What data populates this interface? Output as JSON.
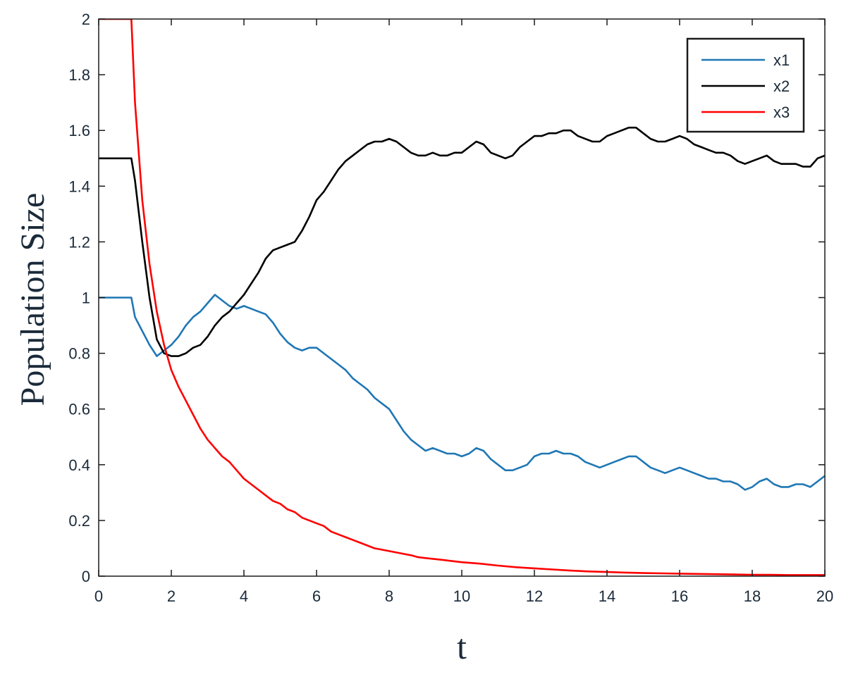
{
  "chart_data": {
    "type": "line",
    "xlabel": "t",
    "ylabel": "Population Size",
    "xlim": [
      0,
      20
    ],
    "ylim": [
      0,
      2
    ],
    "x_ticks": [
      0,
      2,
      4,
      6,
      8,
      10,
      12,
      14,
      16,
      18,
      20
    ],
    "x_tick_labels": [
      "0",
      "2",
      "4",
      "6",
      "8",
      "10",
      "12",
      "14",
      "16",
      "18",
      "20"
    ],
    "y_ticks": [
      0,
      0.2,
      0.4,
      0.6,
      0.8,
      1,
      1.2,
      1.4,
      1.6,
      1.8,
      2
    ],
    "y_tick_labels": [
      "0",
      "0.2",
      "0.4",
      "0.6",
      "0.8",
      "1",
      "1.2",
      "1.4",
      "1.6",
      "1.8",
      "2"
    ],
    "grid": false,
    "legend": "top-right",
    "series": [
      {
        "name": "x1",
        "color": "#1f77b4",
        "points": [
          [
            0,
            1.0
          ],
          [
            0.9,
            1.0
          ],
          [
            1.0,
            0.93
          ],
          [
            1.2,
            0.88
          ],
          [
            1.4,
            0.83
          ],
          [
            1.6,
            0.79
          ],
          [
            1.8,
            0.81
          ],
          [
            2.0,
            0.83
          ],
          [
            2.2,
            0.86
          ],
          [
            2.4,
            0.9
          ],
          [
            2.6,
            0.93
          ],
          [
            2.8,
            0.95
          ],
          [
            3.0,
            0.98
          ],
          [
            3.2,
            1.01
          ],
          [
            3.4,
            0.99
          ],
          [
            3.6,
            0.97
          ],
          [
            3.8,
            0.96
          ],
          [
            4.0,
            0.97
          ],
          [
            4.2,
            0.96
          ],
          [
            4.4,
            0.95
          ],
          [
            4.6,
            0.94
          ],
          [
            4.8,
            0.91
          ],
          [
            5.0,
            0.87
          ],
          [
            5.2,
            0.84
          ],
          [
            5.4,
            0.82
          ],
          [
            5.6,
            0.81
          ],
          [
            5.8,
            0.82
          ],
          [
            6.0,
            0.82
          ],
          [
            6.2,
            0.8
          ],
          [
            6.4,
            0.78
          ],
          [
            6.6,
            0.76
          ],
          [
            6.8,
            0.74
          ],
          [
            7.0,
            0.71
          ],
          [
            7.2,
            0.69
          ],
          [
            7.4,
            0.67
          ],
          [
            7.6,
            0.64
          ],
          [
            7.8,
            0.62
          ],
          [
            8.0,
            0.6
          ],
          [
            8.2,
            0.56
          ],
          [
            8.4,
            0.52
          ],
          [
            8.6,
            0.49
          ],
          [
            8.8,
            0.47
          ],
          [
            9.0,
            0.45
          ],
          [
            9.2,
            0.46
          ],
          [
            9.4,
            0.45
          ],
          [
            9.6,
            0.44
          ],
          [
            9.8,
            0.44
          ],
          [
            10.0,
            0.43
          ],
          [
            10.2,
            0.44
          ],
          [
            10.4,
            0.46
          ],
          [
            10.6,
            0.45
          ],
          [
            10.8,
            0.42
          ],
          [
            11.0,
            0.4
          ],
          [
            11.2,
            0.38
          ],
          [
            11.4,
            0.38
          ],
          [
            11.6,
            0.39
          ],
          [
            11.8,
            0.4
          ],
          [
            12.0,
            0.43
          ],
          [
            12.2,
            0.44
          ],
          [
            12.4,
            0.44
          ],
          [
            12.6,
            0.45
          ],
          [
            12.8,
            0.44
          ],
          [
            13.0,
            0.44
          ],
          [
            13.2,
            0.43
          ],
          [
            13.4,
            0.41
          ],
          [
            13.6,
            0.4
          ],
          [
            13.8,
            0.39
          ],
          [
            14.0,
            0.4
          ],
          [
            14.2,
            0.41
          ],
          [
            14.4,
            0.42
          ],
          [
            14.6,
            0.43
          ],
          [
            14.8,
            0.43
          ],
          [
            15.0,
            0.41
          ],
          [
            15.2,
            0.39
          ],
          [
            15.4,
            0.38
          ],
          [
            15.6,
            0.37
          ],
          [
            15.8,
            0.38
          ],
          [
            16.0,
            0.39
          ],
          [
            16.2,
            0.38
          ],
          [
            16.4,
            0.37
          ],
          [
            16.6,
            0.36
          ],
          [
            16.8,
            0.35
          ],
          [
            17.0,
            0.35
          ],
          [
            17.2,
            0.34
          ],
          [
            17.4,
            0.34
          ],
          [
            17.6,
            0.33
          ],
          [
            17.8,
            0.31
          ],
          [
            18.0,
            0.32
          ],
          [
            18.2,
            0.34
          ],
          [
            18.4,
            0.35
          ],
          [
            18.6,
            0.33
          ],
          [
            18.8,
            0.32
          ],
          [
            19.0,
            0.32
          ],
          [
            19.2,
            0.33
          ],
          [
            19.4,
            0.33
          ],
          [
            19.6,
            0.32
          ],
          [
            19.8,
            0.34
          ],
          [
            20.0,
            0.36
          ]
        ]
      },
      {
        "name": "x2",
        "color": "#000000",
        "points": [
          [
            0,
            1.5
          ],
          [
            0.9,
            1.5
          ],
          [
            1.0,
            1.42
          ],
          [
            1.2,
            1.2
          ],
          [
            1.4,
            1.0
          ],
          [
            1.6,
            0.85
          ],
          [
            1.8,
            0.8
          ],
          [
            2.0,
            0.79
          ],
          [
            2.2,
            0.79
          ],
          [
            2.4,
            0.8
          ],
          [
            2.6,
            0.82
          ],
          [
            2.8,
            0.83
          ],
          [
            3.0,
            0.86
          ],
          [
            3.2,
            0.9
          ],
          [
            3.4,
            0.93
          ],
          [
            3.6,
            0.95
          ],
          [
            3.8,
            0.98
          ],
          [
            4.0,
            1.01
          ],
          [
            4.2,
            1.05
          ],
          [
            4.4,
            1.09
          ],
          [
            4.6,
            1.14
          ],
          [
            4.8,
            1.17
          ],
          [
            5.0,
            1.18
          ],
          [
            5.2,
            1.19
          ],
          [
            5.4,
            1.2
          ],
          [
            5.6,
            1.24
          ],
          [
            5.8,
            1.29
          ],
          [
            6.0,
            1.35
          ],
          [
            6.2,
            1.38
          ],
          [
            6.4,
            1.42
          ],
          [
            6.6,
            1.46
          ],
          [
            6.8,
            1.49
          ],
          [
            7.0,
            1.51
          ],
          [
            7.2,
            1.53
          ],
          [
            7.4,
            1.55
          ],
          [
            7.6,
            1.56
          ],
          [
            7.8,
            1.56
          ],
          [
            8.0,
            1.57
          ],
          [
            8.2,
            1.56
          ],
          [
            8.4,
            1.54
          ],
          [
            8.6,
            1.52
          ],
          [
            8.8,
            1.51
          ],
          [
            9.0,
            1.51
          ],
          [
            9.2,
            1.52
          ],
          [
            9.4,
            1.51
          ],
          [
            9.6,
            1.51
          ],
          [
            9.8,
            1.52
          ],
          [
            10.0,
            1.52
          ],
          [
            10.2,
            1.54
          ],
          [
            10.4,
            1.56
          ],
          [
            10.6,
            1.55
          ],
          [
            10.8,
            1.52
          ],
          [
            11.0,
            1.51
          ],
          [
            11.2,
            1.5
          ],
          [
            11.4,
            1.51
          ],
          [
            11.6,
            1.54
          ],
          [
            11.8,
            1.56
          ],
          [
            12.0,
            1.58
          ],
          [
            12.2,
            1.58
          ],
          [
            12.4,
            1.59
          ],
          [
            12.6,
            1.59
          ],
          [
            12.8,
            1.6
          ],
          [
            13.0,
            1.6
          ],
          [
            13.2,
            1.58
          ],
          [
            13.4,
            1.57
          ],
          [
            13.6,
            1.56
          ],
          [
            13.8,
            1.56
          ],
          [
            14.0,
            1.58
          ],
          [
            14.2,
            1.59
          ],
          [
            14.4,
            1.6
          ],
          [
            14.6,
            1.61
          ],
          [
            14.8,
            1.61
          ],
          [
            15.0,
            1.59
          ],
          [
            15.2,
            1.57
          ],
          [
            15.4,
            1.56
          ],
          [
            15.6,
            1.56
          ],
          [
            15.8,
            1.57
          ],
          [
            16.0,
            1.58
          ],
          [
            16.2,
            1.57
          ],
          [
            16.4,
            1.55
          ],
          [
            16.6,
            1.54
          ],
          [
            16.8,
            1.53
          ],
          [
            17.0,
            1.52
          ],
          [
            17.2,
            1.52
          ],
          [
            17.4,
            1.51
          ],
          [
            17.6,
            1.49
          ],
          [
            17.8,
            1.48
          ],
          [
            18.0,
            1.49
          ],
          [
            18.2,
            1.5
          ],
          [
            18.4,
            1.51
          ],
          [
            18.6,
            1.49
          ],
          [
            18.8,
            1.48
          ],
          [
            19.0,
            1.48
          ],
          [
            19.2,
            1.48
          ],
          [
            19.4,
            1.47
          ],
          [
            19.6,
            1.47
          ],
          [
            19.8,
            1.5
          ],
          [
            20.0,
            1.51
          ]
        ]
      },
      {
        "name": "x3",
        "color": "#ff0000",
        "points": [
          [
            0,
            2.0
          ],
          [
            0.9,
            2.0
          ],
          [
            1.0,
            1.7
          ],
          [
            1.2,
            1.35
          ],
          [
            1.4,
            1.12
          ],
          [
            1.6,
            0.95
          ],
          [
            1.8,
            0.83
          ],
          [
            2.0,
            0.74
          ],
          [
            2.2,
            0.68
          ],
          [
            2.4,
            0.63
          ],
          [
            2.6,
            0.58
          ],
          [
            2.8,
            0.53
          ],
          [
            3.0,
            0.49
          ],
          [
            3.2,
            0.46
          ],
          [
            3.4,
            0.43
          ],
          [
            3.6,
            0.41
          ],
          [
            3.8,
            0.38
          ],
          [
            4.0,
            0.35
          ],
          [
            4.2,
            0.33
          ],
          [
            4.4,
            0.31
          ],
          [
            4.6,
            0.29
          ],
          [
            4.8,
            0.27
          ],
          [
            5.0,
            0.26
          ],
          [
            5.2,
            0.24
          ],
          [
            5.4,
            0.23
          ],
          [
            5.6,
            0.21
          ],
          [
            5.8,
            0.2
          ],
          [
            6.0,
            0.19
          ],
          [
            6.2,
            0.18
          ],
          [
            6.4,
            0.16
          ],
          [
            6.6,
            0.15
          ],
          [
            6.8,
            0.14
          ],
          [
            7.0,
            0.13
          ],
          [
            7.2,
            0.12
          ],
          [
            7.4,
            0.11
          ],
          [
            7.6,
            0.1
          ],
          [
            7.8,
            0.095
          ],
          [
            8.0,
            0.09
          ],
          [
            8.2,
            0.085
          ],
          [
            8.4,
            0.08
          ],
          [
            8.6,
            0.075
          ],
          [
            8.8,
            0.068
          ],
          [
            9.0,
            0.065
          ],
          [
            9.5,
            0.058
          ],
          [
            10.0,
            0.05
          ],
          [
            10.5,
            0.045
          ],
          [
            11.0,
            0.038
          ],
          [
            11.5,
            0.032
          ],
          [
            12.0,
            0.028
          ],
          [
            12.5,
            0.024
          ],
          [
            13.0,
            0.02
          ],
          [
            13.5,
            0.017
          ],
          [
            14.0,
            0.015
          ],
          [
            14.5,
            0.013
          ],
          [
            15.0,
            0.011
          ],
          [
            15.5,
            0.01
          ],
          [
            16.0,
            0.009
          ],
          [
            16.5,
            0.008
          ],
          [
            17.0,
            0.007
          ],
          [
            17.5,
            0.006
          ],
          [
            18.0,
            0.005
          ],
          [
            18.5,
            0.005
          ],
          [
            19.0,
            0.004
          ],
          [
            19.5,
            0.004
          ],
          [
            20.0,
            0.004
          ]
        ]
      }
    ]
  }
}
